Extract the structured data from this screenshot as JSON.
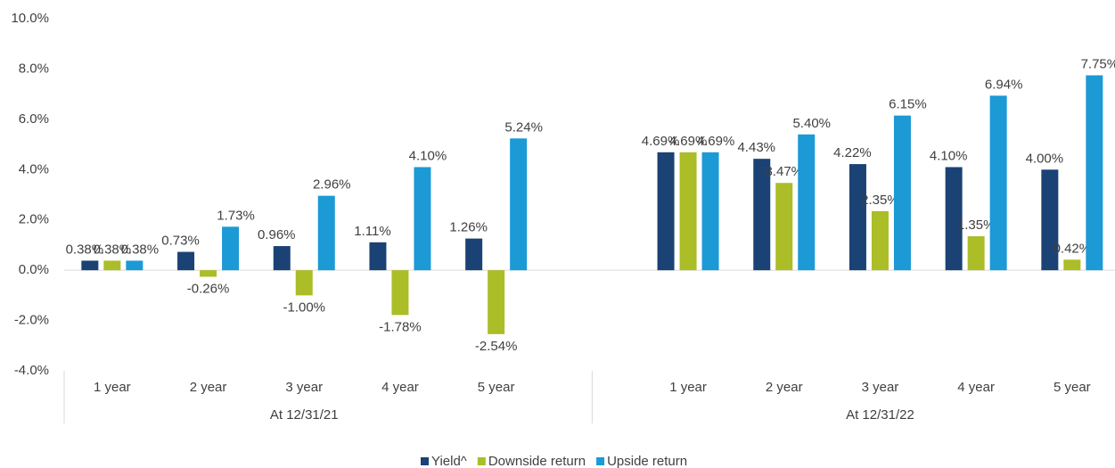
{
  "chart_data": {
    "type": "bar",
    "groups": [
      {
        "label": "At 12/31/21",
        "categories": [
          "1 year",
          "2 year",
          "3 year",
          "4 year",
          "5 year"
        ]
      },
      {
        "label": "At 12/31/22",
        "categories": [
          "1 year",
          "2 year",
          "3 year",
          "4 year",
          "5 year"
        ]
      }
    ],
    "series": [
      {
        "name": "Yield^",
        "color": "#1b4274",
        "values": [
          0.38,
          0.73,
          0.96,
          1.11,
          1.26,
          4.69,
          4.43,
          4.22,
          4.1,
          4.0
        ],
        "value_labels": [
          "0.38%",
          "0.73%",
          "0.96%",
          "1.11%",
          "1.26%",
          "4.69%",
          "4.43%",
          "4.22%",
          "4.10%",
          "4.00%"
        ]
      },
      {
        "name": "Downside return",
        "color": "#abbd27",
        "values": [
          0.38,
          -0.26,
          -1.0,
          -1.78,
          -2.54,
          4.69,
          3.47,
          2.35,
          1.35,
          0.42
        ],
        "value_labels": [
          "0.38%",
          "-0.26%",
          "-1.00%",
          "-1.78%",
          "-2.54%",
          "4.69%",
          "3.47%",
          "2.35%",
          "1.35%",
          "0.42%"
        ]
      },
      {
        "name": "Upside return",
        "color": "#1b9ad6",
        "values": [
          0.38,
          1.73,
          2.96,
          4.1,
          5.24,
          4.69,
          5.4,
          6.15,
          6.94,
          7.75
        ],
        "value_labels": [
          "0.38%",
          "1.73%",
          "2.96%",
          "4.10%",
          "5.24%",
          "4.69%",
          "5.40%",
          "6.15%",
          "6.94%",
          "7.75%"
        ]
      }
    ],
    "ylim": [
      -4,
      10
    ],
    "yticks": [
      {
        "value": -4,
        "label": "-4.0%"
      },
      {
        "value": -2,
        "label": "-2.0%"
      },
      {
        "value": 0,
        "label": "0.0%"
      },
      {
        "value": 2,
        "label": "2.0%"
      },
      {
        "value": 4,
        "label": "4.0%"
      },
      {
        "value": 6,
        "label": "6.0%"
      },
      {
        "value": 8,
        "label": "8.0%"
      },
      {
        "value": 10,
        "label": "10.0%"
      }
    ],
    "legend": "bottom"
  }
}
